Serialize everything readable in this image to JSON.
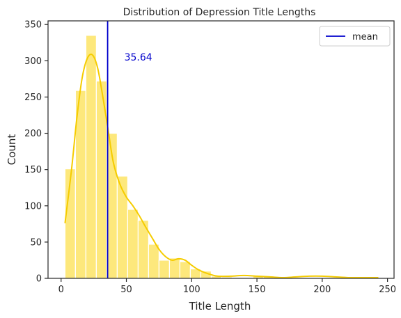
{
  "chart_data": {
    "type": "bar",
    "title": "Distribution of Depression Title Lengths",
    "xlabel": "Title Length",
    "ylabel": "Count",
    "xlim": [
      -10,
      255
    ],
    "ylim": [
      0,
      355
    ],
    "xticks": [
      0,
      50,
      100,
      150,
      200,
      250
    ],
    "yticks": [
      0,
      50,
      100,
      150,
      200,
      250,
      300,
      350
    ],
    "bins": {
      "start": 3,
      "width": 8,
      "counts": [
        151,
        259,
        335,
        272,
        200,
        141,
        95,
        80,
        47,
        25,
        28,
        23,
        13,
        10,
        3,
        2,
        1,
        1,
        3,
        3,
        2,
        1,
        1,
        1,
        1,
        1,
        1,
        1,
        1,
        1
      ]
    },
    "kde": {
      "x": [
        3,
        8,
        12,
        16,
        20,
        24,
        28,
        32,
        36,
        40,
        45,
        50,
        55,
        60,
        65,
        70,
        75,
        80,
        85,
        90,
        95,
        100,
        105,
        110,
        115,
        120,
        130,
        140,
        150,
        160,
        170,
        180,
        190,
        200,
        210,
        220,
        230,
        243
      ],
      "y": [
        76,
        150,
        220,
        275,
        303,
        308,
        290,
        250,
        205,
        160,
        130,
        112,
        100,
        86,
        70,
        55,
        40,
        30,
        25,
        27,
        25,
        18,
        12,
        8,
        5,
        3,
        3,
        4,
        3,
        2,
        1,
        2,
        3,
        3,
        2,
        1,
        1,
        1
      ]
    },
    "mean": 35.64,
    "mean_label": "35.64",
    "legend": {
      "position": "top-right",
      "entries": [
        {
          "name": "mean"
        }
      ]
    },
    "colors": {
      "bar": "#fde87c",
      "bar_edge": "#ffffff",
      "kde": "#f5cc00",
      "mean_line": "#0000cc",
      "axis": "#262626"
    },
    "grid": false
  }
}
